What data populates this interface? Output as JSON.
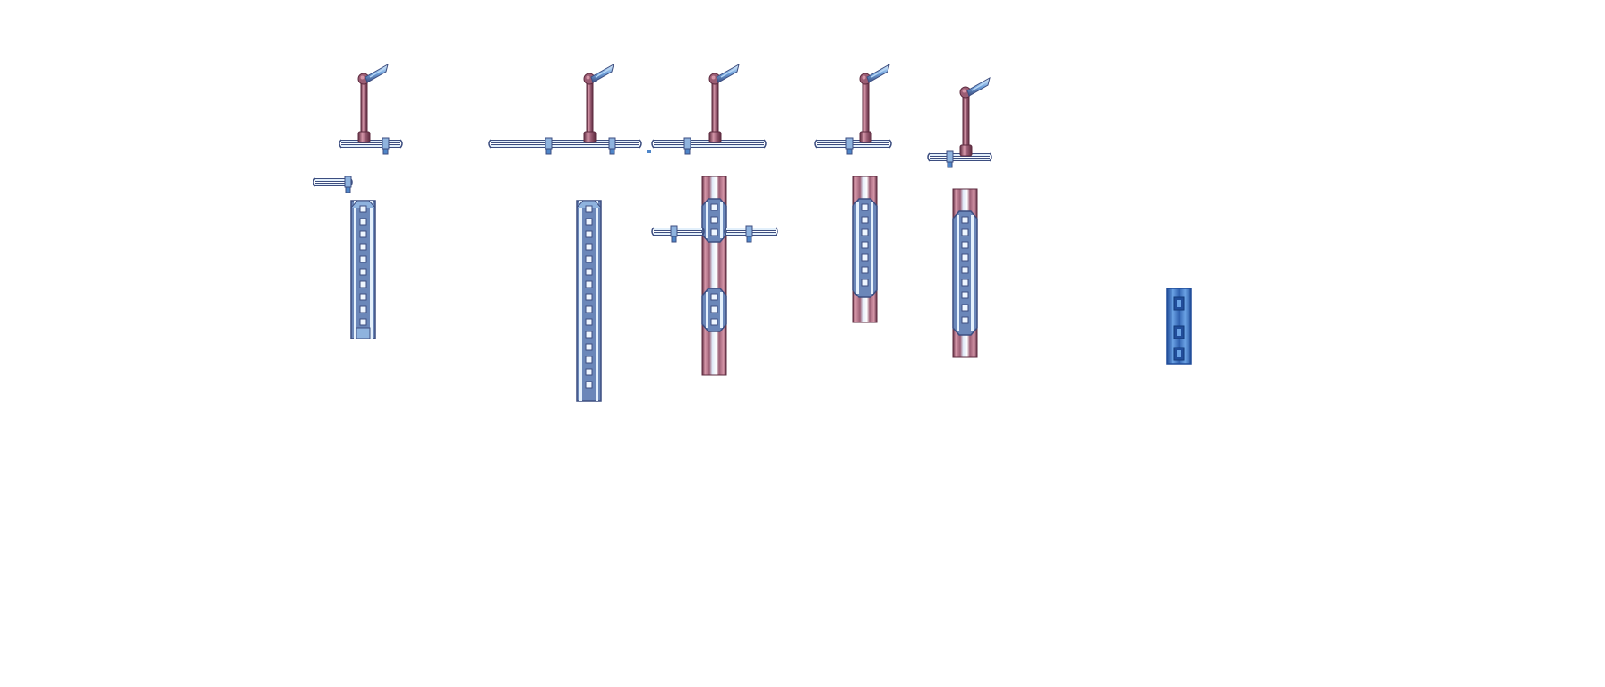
{
  "sheet": {
    "background": "#ffffff",
    "palette": {
      "pipe_outline": "#3d4e80",
      "pipe_light": "#e3f0fb",
      "pipe_mid": "#8fb3de",
      "pipe_blue": "#4f86c9",
      "pole_dark": "#5d2b3f",
      "pole_mid": "#9b5d74",
      "pole_light": "#d596a8",
      "lamp_light": "#b8d7f5",
      "lamp_mid": "#6fa2dc",
      "ladder_rail": "#e5f1fc",
      "ladder_inner": "#6b87b9",
      "ladder_step": "#eef6ff",
      "column_blue_dark": "#214d9a",
      "column_blue_light": "#6aa2e4"
    },
    "sprites": [
      {
        "kind": "lamp-post-on-railing",
        "icon": "lamp-post-icon"
      },
      {
        "kind": "lamp-post-on-long-railing",
        "icon": "lamp-post-icon"
      },
      {
        "kind": "lamp-post-on-railing",
        "icon": "lamp-post-icon"
      },
      {
        "kind": "lamp-post-on-railing",
        "icon": "lamp-post-icon"
      },
      {
        "kind": "lamp-post-on-railing",
        "icon": "lamp-post-icon"
      },
      {
        "kind": "railing-fragment",
        "icon": "railing-icon"
      },
      {
        "kind": "ladder-column",
        "icon": "ladder-icon"
      },
      {
        "kind": "ladder-column-tall",
        "icon": "ladder-icon"
      },
      {
        "kind": "pipe-column-with-railings",
        "icon": "pipe-column-icon"
      },
      {
        "kind": "pipe-column",
        "icon": "pipe-column-icon"
      },
      {
        "kind": "pipe-column",
        "icon": "pipe-column-icon"
      },
      {
        "kind": "blue-tech-column",
        "icon": "tech-column-icon"
      }
    ]
  }
}
